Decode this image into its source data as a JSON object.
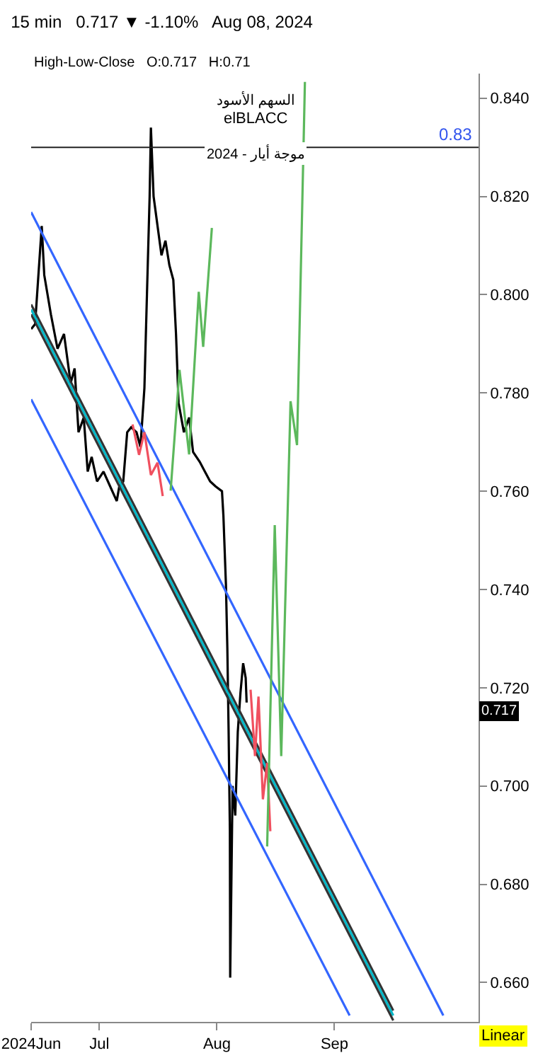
{
  "chart_data": {
    "type": "line",
    "title": "15 min   0.717 ▼ -1.10%   Aug 08, 2024",
    "subtitle": "High-Low-Close   O:0.717   H:0.71",
    "xlim": [
      "2024-06-13",
      "2024-10-09"
    ],
    "xticks": [
      {
        "value": "2024-06-13",
        "label": "2024Jun"
      },
      {
        "value": "2024-07-01",
        "label": "Jul"
      },
      {
        "value": "2024-08-01",
        "label": "Aug"
      },
      {
        "value": "2024-09-01",
        "label": "Sep"
      }
    ],
    "ylim": [
      0.652,
      0.845
    ],
    "yticks": [
      {
        "value": 0.66,
        "label": "0.660"
      },
      {
        "value": 0.68,
        "label": "0.680"
      },
      {
        "value": 0.7,
        "label": "0.700"
      },
      {
        "value": 0.72,
        "label": "0.720"
      },
      {
        "value": 0.74,
        "label": "0.740"
      },
      {
        "value": 0.76,
        "label": "0.760"
      },
      {
        "value": 0.78,
        "label": "0.780"
      },
      {
        "value": 0.8,
        "label": "0.800"
      },
      {
        "value": 0.82,
        "label": "0.820"
      },
      {
        "value": 0.84,
        "label": "0.840"
      }
    ],
    "grid": false,
    "marker": "none",
    "ref_lines": [
      {
        "axis": "y",
        "value": 0.83,
        "label": "0.83",
        "color": "#222222"
      }
    ],
    "annotations": [
      "السهم الأسود",
      "elBLACC",
      "موجة أيار - 2024",
      "Linear",
      "0.717"
    ],
    "series": [
      {
        "color": "#000000",
        "x": [
          "2024-06-13T00:00",
          "2024-06-14T01:00",
          "2024-06-15T19:00",
          "2024-06-16T11:00",
          "2024-06-18T05:00",
          "2024-06-19T23:00",
          "2024-06-21T16:00",
          "2024-06-23T10:00",
          "2024-06-24T11:00",
          "2024-06-25T12:00",
          "2024-06-26T21:00",
          "2024-06-27T22:00",
          "2024-06-28T23:00",
          "2024-06-30T09:00",
          "2024-07-02T02:00",
          "2024-07-03T20:00",
          "2024-07-05T14:00",
          "2024-07-06T06:00",
          "2024-07-07T07:00",
          "2024-07-08T08:00",
          "2024-07-09T09:00",
          "2024-07-10T19:00",
          "2024-07-11T20:00",
          "2024-07-12T21:00",
          "2024-07-13T13:00",
          "2024-07-14T06:00",
          "2024-07-14T14:00",
          "2024-07-15T07:00",
          "2024-07-16T08:00",
          "2024-07-17T09:00",
          "2024-07-18T10:00",
          "2024-07-19T11:00",
          "2024-07-20T12:00",
          "2024-07-21T05:00",
          "2024-07-21T21:00",
          "2024-07-23T07:00",
          "2024-07-24T16:00",
          "2024-07-25T17:00",
          "2024-07-27T11:00",
          "2024-07-28T20:00",
          "2024-07-30T05:00",
          "2024-07-31T15:00",
          "2024-08-02T08:00",
          "2024-08-02T17:00",
          "2024-08-03T09:00",
          "2024-08-03T18:00",
          "2024-08-04T02:00",
          "2024-08-04T10:00",
          "2024-08-04T12:00",
          "2024-08-05T03:00",
          "2024-08-05T20:00",
          "2024-08-06T12:00",
          "2024-08-07T05:00",
          "2024-08-07T22:00",
          "2024-08-08T14:00",
          "2024-08-08T20:00"
        ],
        "values": [
          0.793,
          0.794,
          0.814,
          0.804,
          0.796,
          0.789,
          0.792,
          0.782,
          0.785,
          0.772,
          0.775,
          0.764,
          0.767,
          0.762,
          0.764,
          0.761,
          0.758,
          0.761,
          0.762,
          0.772,
          0.773,
          0.772,
          0.769,
          0.781,
          0.8,
          0.82,
          0.834,
          0.82,
          0.814,
          0.808,
          0.811,
          0.806,
          0.803,
          0.792,
          0.778,
          0.772,
          0.775,
          0.768,
          0.766,
          0.764,
          0.762,
          0.761,
          0.76,
          0.755,
          0.741,
          0.728,
          0.711,
          0.691,
          0.661,
          0.7,
          0.694,
          0.711,
          0.719,
          0.725,
          0.722,
          0.717
        ]
      },
      {
        "color": "#333333",
        "x": [
          "2024-06-13",
          "2024-09-16T12:00"
        ],
        "values": [
          0.798,
          0.6543
        ]
      },
      {
        "color": "#00b8c8",
        "x": [
          "2024-06-13",
          "2024-09-16T12:00"
        ],
        "values": [
          0.797,
          0.6533
        ]
      },
      {
        "color": "#333333",
        "x": [
          "2024-06-13",
          "2024-09-16T12:00"
        ],
        "values": [
          0.796,
          0.6523
        ]
      },
      {
        "color": "#3366ff",
        "x": [
          "2024-06-13",
          "2024-09-29T17:00"
        ],
        "values": [
          0.8168,
          0.6533
        ]
      },
      {
        "color": "#3366ff",
        "x": [
          "2024-06-13",
          "2024-09-05"
        ],
        "values": [
          0.7787,
          0.6533
        ]
      },
      {
        "color": "#f0505f",
        "x": [
          "2024-07-09T18:00",
          "2024-07-11T11:00",
          "2024-07-12T21:00",
          "2024-07-14T14:00",
          "2024-07-16T08:00",
          "2024-07-17T17:00"
        ],
        "values": [
          0.7736,
          0.7674,
          0.772,
          0.7633,
          0.7658,
          0.759
        ]
      },
      {
        "color": "#f0505f",
        "x": [
          "2024-08-09T21:00",
          "2024-08-11T01:00",
          "2024-08-11T23:00",
          "2024-08-13T03:00",
          "2024-08-14T06:00",
          "2024-08-15T02:00"
        ],
        "values": [
          0.7196,
          0.7061,
          0.7182,
          0.6973,
          0.7047,
          0.6908
        ]
      },
      {
        "color": "#5cb85c",
        "x": [
          "2024-07-19T19:00",
          "2024-07-22T03:00",
          "2024-07-24T16:00",
          "2024-07-27T05:00",
          "2024-07-28T09:00",
          "2024-07-30T16:00"
        ],
        "values": [
          0.7601,
          0.7847,
          0.7675,
          0.8006,
          0.7894,
          0.8136
        ]
      },
      {
        "color": "#5cb85c",
        "x": [
          "2024-08-14T06:00",
          "2024-08-16T06:00",
          "2024-08-17T23:00",
          "2024-08-20T10:00",
          "2024-08-22T03:00",
          "2024-08-24T05:00"
        ],
        "values": [
          0.6877,
          0.7531,
          0.7061,
          0.7783,
          0.7694,
          0.8433
        ]
      }
    ]
  }
}
